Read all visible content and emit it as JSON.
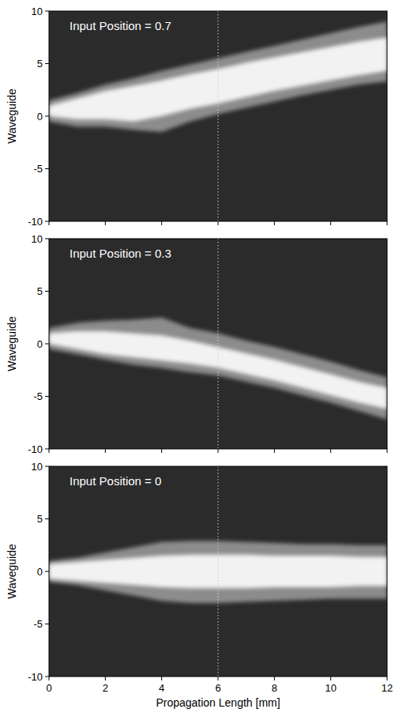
{
  "chart_data": [
    {
      "type": "area",
      "annotation": "Input Position = 0.7",
      "ylabel": "Waveguide",
      "x": [
        0,
        1,
        2,
        3,
        4,
        5,
        6,
        7,
        8,
        9,
        10,
        11,
        12
      ],
      "series": [
        {
          "color": "#8c8c8c",
          "upper": [
            1.5,
            2.2,
            3.0,
            3.6,
            4.3,
            4.9,
            5.5,
            6.1,
            6.7,
            7.3,
            7.9,
            8.5,
            9.0
          ],
          "lower": [
            -0.5,
            -1.0,
            -1.0,
            -1.3,
            -1.5,
            -0.5,
            0.2,
            0.8,
            1.4,
            2.0,
            2.5,
            3.0,
            3.3
          ]
        },
        {
          "color": "#f2f2f2",
          "upper": [
            1.0,
            1.7,
            2.4,
            2.9,
            3.4,
            4.0,
            4.5,
            5.1,
            5.6,
            6.1,
            6.6,
            7.1,
            7.5
          ],
          "lower": [
            0.0,
            -0.3,
            -0.3,
            -0.5,
            0.0,
            0.7,
            1.2,
            1.8,
            2.4,
            2.9,
            3.4,
            3.9,
            4.3
          ]
        }
      ],
      "reference_x": 6,
      "xlim": [
        0,
        12
      ],
      "ylim": [
        -10,
        10
      ],
      "xticks": [
        0,
        2,
        4,
        6,
        8,
        10,
        12
      ],
      "yticks": [
        -10,
        -5,
        0,
        5,
        10
      ],
      "tick_labels": "y"
    },
    {
      "type": "area",
      "annotation": "Input Position = 0.3",
      "ylabel": "Waveguide",
      "x": [
        0,
        1,
        2,
        3,
        4,
        5,
        6,
        7,
        8,
        9,
        10,
        11,
        12
      ],
      "series": [
        {
          "color": "#8c8c8c",
          "upper": [
            1.5,
            2.0,
            2.2,
            2.3,
            2.5,
            1.5,
            1.0,
            0.3,
            -0.3,
            -1.0,
            -1.7,
            -2.5,
            -3.2
          ],
          "lower": [
            -0.5,
            -1.0,
            -1.5,
            -2.0,
            -2.3,
            -2.7,
            -3.0,
            -3.6,
            -4.2,
            -4.9,
            -5.6,
            -6.4,
            -7.2
          ]
        },
        {
          "color": "#f2f2f2",
          "upper": [
            1.0,
            1.2,
            1.2,
            1.0,
            0.8,
            0.3,
            -0.3,
            -0.9,
            -1.5,
            -2.2,
            -2.9,
            -3.6,
            -4.2
          ],
          "lower": [
            0.0,
            -0.5,
            -1.0,
            -1.3,
            -1.6,
            -1.9,
            -2.3,
            -2.9,
            -3.5,
            -4.2,
            -4.9,
            -5.6,
            -6.2
          ]
        }
      ],
      "reference_x": 6,
      "xlim": [
        0,
        12
      ],
      "ylim": [
        -10,
        10
      ],
      "xticks": [
        0,
        2,
        4,
        6,
        8,
        10,
        12
      ],
      "yticks": [
        -10,
        -5,
        0,
        5,
        10
      ],
      "tick_labels": "y"
    },
    {
      "type": "area",
      "annotation": "Input Position = 0",
      "ylabel": "Waveguide",
      "xlabel": "Propagation Length [mm]",
      "x": [
        0,
        1,
        2,
        3,
        4,
        5,
        6,
        7,
        8,
        9,
        10,
        11,
        12
      ],
      "series": [
        {
          "color": "#8c8c8c",
          "upper": [
            1.0,
            1.3,
            1.8,
            2.3,
            2.8,
            2.9,
            2.9,
            2.8,
            2.7,
            2.6,
            2.6,
            2.5,
            2.5
          ],
          "lower": [
            -1.0,
            -1.3,
            -1.8,
            -2.3,
            -2.8,
            -3.0,
            -3.0,
            -2.9,
            -2.8,
            -2.7,
            -2.6,
            -2.6,
            -2.6
          ]
        },
        {
          "color": "#f2f2f2",
          "upper": [
            0.7,
            0.9,
            1.1,
            1.3,
            1.5,
            1.6,
            1.6,
            1.6,
            1.5,
            1.5,
            1.5,
            1.4,
            1.4
          ],
          "lower": [
            -0.7,
            -0.9,
            -1.1,
            -1.3,
            -1.5,
            -1.6,
            -1.6,
            -1.6,
            -1.5,
            -1.5,
            -1.5,
            -1.4,
            -1.4
          ]
        }
      ],
      "reference_x": 6,
      "xlim": [
        0,
        12
      ],
      "ylim": [
        -10,
        10
      ],
      "xticks": [
        0,
        2,
        4,
        6,
        8,
        10,
        12
      ],
      "yticks": [
        -10,
        -5,
        0,
        5,
        10
      ]
    }
  ]
}
